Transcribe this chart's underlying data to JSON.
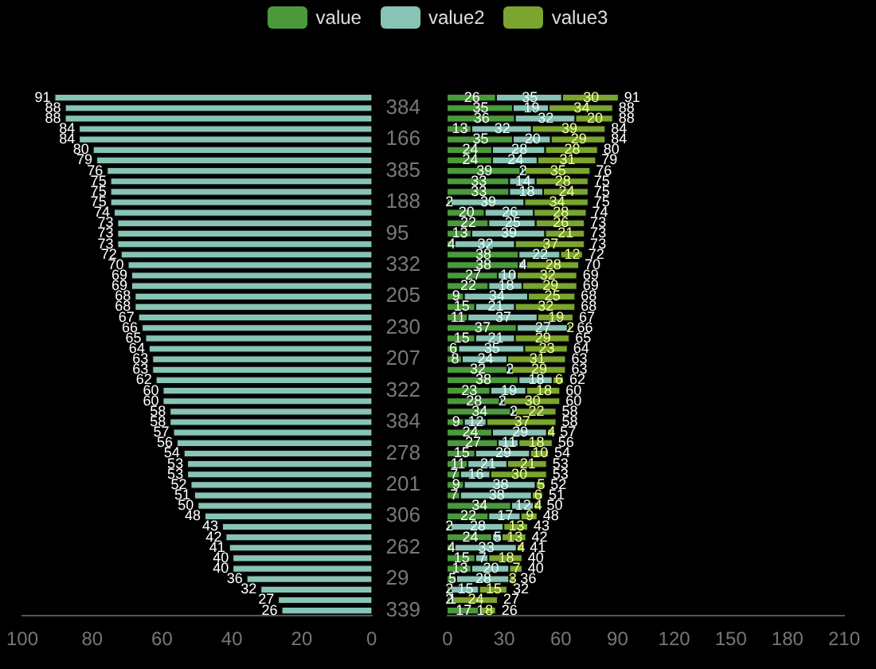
{
  "chart_data": [
    {
      "type": "bar",
      "orientation": "horizontal",
      "categories": [
        null,
        "384",
        null,
        null,
        "166",
        null,
        null,
        "385",
        null,
        null,
        "188",
        null,
        null,
        "95",
        null,
        null,
        "332",
        null,
        null,
        "205",
        null,
        null,
        "230",
        null,
        null,
        "207",
        null,
        null,
        "322",
        null,
        null,
        "384",
        null,
        null,
        "278",
        null,
        null,
        "201",
        null,
        null,
        "306",
        null,
        null,
        "262",
        null,
        null,
        "29",
        null,
        null,
        "339"
      ],
      "values": [
        91,
        88,
        88,
        84,
        84,
        80,
        79,
        76,
        75,
        75,
        75,
        74,
        73,
        73,
        73,
        72,
        70,
        69,
        69,
        68,
        68,
        67,
        66,
        65,
        64,
        63,
        63,
        62,
        60,
        60,
        58,
        58,
        57,
        56,
        54,
        53,
        53,
        52,
        51,
        50,
        48,
        43,
        42,
        41,
        40,
        40,
        36,
        32,
        27,
        26
      ],
      "color": "#88c4b5",
      "xlim": [
        100,
        0
      ],
      "xticks": [
        100,
        80,
        60,
        40,
        20,
        0
      ],
      "data_labels": true,
      "grid": false
    },
    {
      "type": "bar",
      "orientation": "horizontal",
      "stacked": true,
      "categories": [
        null,
        "384",
        null,
        null,
        "166",
        null,
        null,
        "385",
        null,
        null,
        "188",
        null,
        null,
        "95",
        null,
        null,
        "332",
        null,
        null,
        "205",
        null,
        null,
        "230",
        null,
        null,
        "207",
        null,
        null,
        "322",
        null,
        null,
        "384",
        null,
        null,
        "278",
        null,
        null,
        "201",
        null,
        null,
        "306",
        null,
        null,
        "262",
        null,
        null,
        "29",
        null,
        null,
        "339"
      ],
      "series": [
        {
          "name": "value",
          "color": "#4a9a3c",
          "values": [
            26,
            35,
            36,
            13,
            35,
            24,
            24,
            39,
            33,
            33,
            2,
            20,
            22,
            13,
            4,
            38,
            38,
            27,
            22,
            9,
            15,
            11,
            37,
            15,
            6,
            8,
            32,
            38,
            23,
            28,
            34,
            9,
            24,
            27,
            15,
            11,
            7,
            9,
            7,
            34,
            22,
            2,
            24,
            4,
            15,
            13,
            5,
            2,
            2,
            17
          ]
        },
        {
          "name": "value2",
          "color": "#88c4b5",
          "values": [
            35,
            19,
            32,
            32,
            20,
            28,
            24,
            2,
            14,
            18,
            39,
            26,
            25,
            39,
            32,
            22,
            4,
            10,
            18,
            34,
            21,
            37,
            27,
            21,
            35,
            24,
            2,
            18,
            19,
            2,
            2,
            12,
            29,
            11,
            29,
            21,
            16,
            38,
            38,
            12,
            17,
            28,
            5,
            33,
            7,
            20,
            28,
            15,
            1,
            1
          ]
        },
        {
          "name": "value3",
          "color": "#7aa52e",
          "values": [
            30,
            34,
            20,
            39,
            29,
            28,
            31,
            35,
            28,
            24,
            34,
            28,
            26,
            21,
            37,
            12,
            28,
            32,
            29,
            25,
            32,
            19,
            2,
            29,
            23,
            31,
            29,
            6,
            18,
            30,
            22,
            37,
            4,
            18,
            10,
            21,
            30,
            5,
            6,
            4,
            9,
            13,
            13,
            4,
            18,
            7,
            3,
            15,
            24,
            8
          ]
        }
      ],
      "xlim": [
        0,
        210
      ],
      "xticks": [
        0,
        30,
        60,
        90,
        120,
        150,
        180,
        210
      ],
      "data_labels": true,
      "totals": [
        "91",
        "88",
        "88",
        "84",
        "84",
        "80",
        "79",
        "76",
        "75",
        "75",
        "75",
        "74",
        "73",
        "73",
        "73",
        "72",
        "70",
        "69",
        "69",
        "68",
        "68",
        "67",
        "66",
        "65",
        "64",
        "63",
        "63",
        "62",
        "60",
        "60",
        "58",
        "58",
        "57",
        "56",
        "54",
        "53",
        "53",
        "52",
        "51",
        "50",
        "48",
        "43",
        "42",
        "41",
        "40",
        "40",
        "36",
        "32",
        "27",
        "26"
      ],
      "legend": "top",
      "tick_labels": "x",
      "grid": false
    }
  ]
}
